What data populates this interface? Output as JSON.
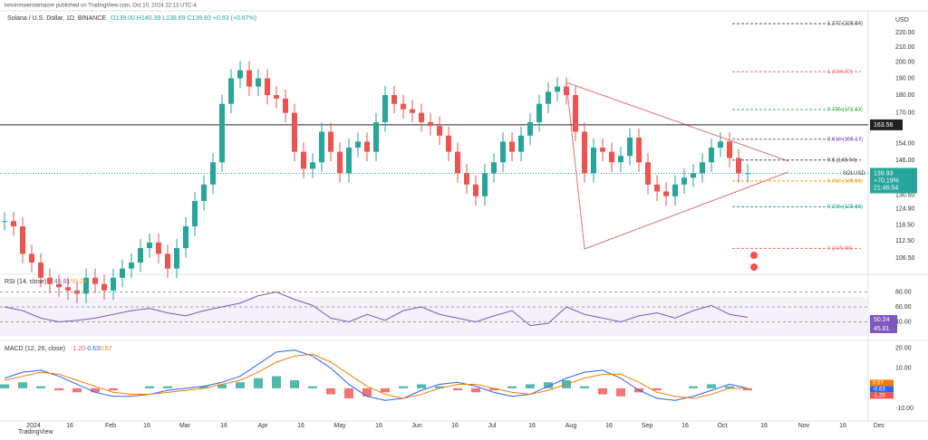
{
  "header": {
    "publisher": "kelvinmwendamaore published on TradingView.com, Oct 10, 2024 22:13 UTC-4",
    "symbol": "Solana / U.S. Dollar, 1D, BINANCE",
    "ohlc": "O139.00 H140.39 L138.69 C139.93 +0.93 (+0.67%)",
    "currency": "USD"
  },
  "price": {
    "log_scale": true,
    "ylim": [
      102,
      234
    ],
    "yticks": [
      {
        "value": 220,
        "label": "220.00"
      },
      {
        "value": 210,
        "label": "210.00"
      },
      {
        "value": 200,
        "label": "200.00"
      },
      {
        "value": 190,
        "label": "190.00"
      },
      {
        "value": 180,
        "label": "180.00"
      },
      {
        "value": 170,
        "label": "170.00"
      },
      {
        "value": 154,
        "label": "154.00"
      },
      {
        "value": 146,
        "label": "146.00"
      },
      {
        "value": 130.5,
        "label": "130.50"
      },
      {
        "value": 124.9,
        "label": "124.90"
      },
      {
        "value": 118.5,
        "label": "118.50"
      },
      {
        "value": 112.5,
        "label": "112.50"
      },
      {
        "value": 106.5,
        "label": "106.50"
      }
    ],
    "level": {
      "value": 163.56,
      "label": "163.56"
    },
    "last": {
      "symbol": "SOLUSD",
      "value": 139.93,
      "label": "139.93",
      "change": "+70.19%",
      "countdown": "21:46:54"
    },
    "fib": [
      {
        "value": 226.54,
        "label": "1.272 (226.54)",
        "color": "#555555"
      },
      {
        "value": 194.07,
        "label": "1 (194.07)",
        "color": "#e57373"
      },
      {
        "value": 171.83,
        "label": "0.786 (171.83)",
        "color": "#4caf50"
      },
      {
        "value": 156.17,
        "label": "0.618 (156.17)",
        "color": "#7e57c2"
      },
      {
        "value": 146.04,
        "label": "0.5 (146.04)",
        "color": "#555555"
      },
      {
        "value": 136.56,
        "label": "0.382 (136.56)",
        "color": "#f0a020"
      },
      {
        "value": 125.68,
        "label": "0.236 (125.68)",
        "color": "#26a69a"
      },
      {
        "value": 109.89,
        "label": "0 (109.89)",
        "color": "#e57373"
      }
    ],
    "closes": [
      120,
      118,
      108,
      105,
      100,
      98,
      97,
      96,
      95,
      100,
      98,
      96,
      100,
      103,
      105,
      110,
      112,
      108,
      103,
      110,
      118,
      128,
      135,
      145,
      175,
      190,
      195,
      185,
      190,
      180,
      178,
      170,
      150,
      142,
      145,
      160,
      150,
      140,
      152,
      155,
      150,
      165,
      180,
      175,
      172,
      170,
      165,
      163,
      158,
      150,
      140,
      135,
      130,
      140,
      145,
      155,
      150,
      158,
      165,
      175,
      182,
      185,
      180,
      160,
      140,
      152,
      150,
      145,
      148,
      157,
      145,
      135,
      132,
      130,
      135,
      138,
      140,
      145,
      152,
      155,
      147,
      140,
      140
    ]
  },
  "rsi": {
    "label": "RSI (14, close)",
    "ma_value": "50.24",
    "value": "45.81",
    "ylim": [
      20,
      100
    ],
    "yticks": [
      {
        "value": 80,
        "label": "80.00"
      },
      {
        "value": 60,
        "label": "60.00"
      },
      {
        "value": 40,
        "label": "40.00"
      }
    ],
    "values": [
      60,
      55,
      45,
      40,
      42,
      45,
      50,
      55,
      58,
      52,
      48,
      55,
      60,
      65,
      75,
      80,
      70,
      62,
      45,
      40,
      50,
      42,
      55,
      60,
      50,
      45,
      40,
      48,
      55,
      35,
      38,
      60,
      50,
      45,
      40,
      48,
      52,
      45,
      55,
      62,
      50,
      46
    ]
  },
  "macd": {
    "label": "MACD (12, 26, close)",
    "hist_label": "-1.20",
    "macd_label": "-0.63",
    "signal_label": "0.57",
    "ylim": [
      -14,
      22
    ],
    "yticks": [
      {
        "value": 20,
        "label": "20.00"
      },
      {
        "value": 10,
        "label": "10.00"
      },
      {
        "value": -10,
        "label": "-10.00"
      }
    ],
    "hist": [
      2,
      3,
      1,
      -1,
      -2,
      -2,
      -1,
      0,
      1,
      1,
      0,
      1,
      2,
      3,
      5,
      6,
      4,
      1,
      -3,
      -5,
      -4,
      -2,
      1,
      2,
      1,
      -1,
      -2,
      -1,
      1,
      2,
      3,
      4,
      1,
      -3,
      -4,
      -2,
      -1,
      0,
      1,
      2,
      1,
      -1
    ],
    "macd": [
      5,
      8,
      9,
      6,
      2,
      -2,
      -4,
      -4,
      -3,
      -1,
      0,
      1,
      3,
      6,
      12,
      18,
      19,
      16,
      10,
      2,
      -4,
      -6,
      -5,
      -1,
      2,
      3,
      1,
      -2,
      -4,
      -3,
      1,
      5,
      8,
      9,
      5,
      -1,
      -5,
      -6,
      -4,
      -1,
      2,
      0
    ],
    "signal": [
      4,
      6,
      8,
      7,
      4,
      1,
      -2,
      -3,
      -3,
      -2,
      -1,
      0,
      2,
      4,
      8,
      13,
      16,
      17,
      13,
      7,
      1,
      -3,
      -5,
      -3,
      0,
      2,
      2,
      0,
      -2,
      -3,
      -1,
      2,
      5,
      7,
      7,
      3,
      -2,
      -4,
      -5,
      -3,
      0,
      0
    ]
  },
  "xaxis": [
    "2024",
    "16",
    "Feb",
    "16",
    "Mar",
    "16",
    "Apr",
    "16",
    "May",
    "16",
    "Jun",
    "16",
    "Jul",
    "16",
    "Aug",
    "16",
    "Sep",
    "16",
    "Oct",
    "16",
    "Nov",
    "16",
    "Dec"
  ],
  "footer": "TradingView"
}
